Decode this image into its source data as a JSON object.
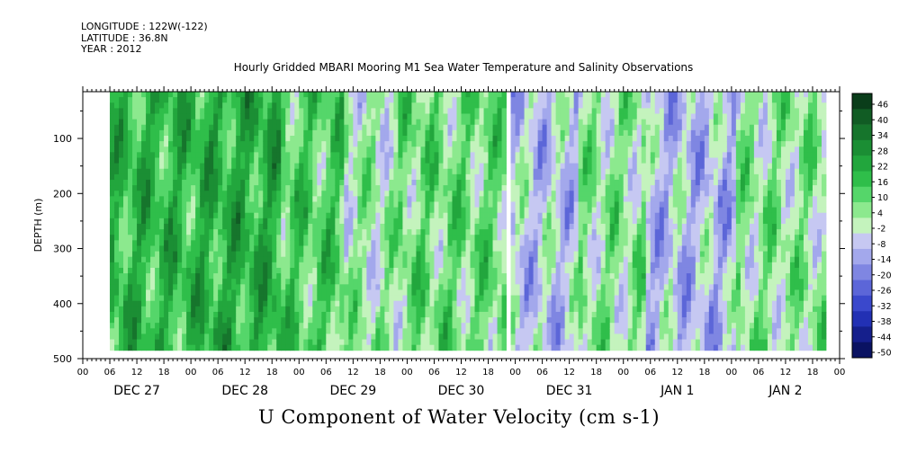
{
  "header": {
    "longitude": "LONGITUDE : 122W(-122)",
    "latitude": "LATITUDE : 36.8N",
    "year": "YEAR : 2012"
  },
  "chart_data": {
    "type": "heatmap",
    "title": "Hourly Gridded MBARI Mooring M1 Sea Water Temperature and Salinity Observations",
    "xlabel": "U Component of Water Velocity (cm s-1)",
    "ylabel": "DEPTH (m)",
    "ylim": [
      500,
      15
    ],
    "y_ticks": [
      100,
      200,
      300,
      400,
      500
    ],
    "x_range_hours": [
      0,
      168
    ],
    "x_hour_ticks": [
      "00",
      "06",
      "12",
      "18",
      "00",
      "06",
      "12",
      "18",
      "00",
      "06",
      "12",
      "18",
      "00",
      "06",
      "12",
      "18",
      "00",
      "06",
      "12",
      "18",
      "00",
      "06",
      "12",
      "18",
      "00",
      "06",
      "12",
      "18",
      "00"
    ],
    "day_labels": [
      "DEC 27",
      "DEC 28",
      "DEC 29",
      "DEC 30",
      "DEC 31",
      "JAN  1",
      "JAN  2"
    ],
    "data_extent_hours": [
      6,
      165
    ],
    "data_gaps": [
      {
        "hours": [
          94,
          95
        ],
        "depth": [
          15,
          485
        ]
      }
    ],
    "colorbar": {
      "labels": [
        "46",
        "40",
        "34",
        "28",
        "22",
        "16",
        "10",
        "4",
        "-2",
        "-8",
        "-14",
        "-20",
        "-26",
        "-32",
        "-38",
        "-44",
        "-50"
      ],
      "colors": [
        "#0a3d1a",
        "#115c24",
        "#16752c",
        "#1b8e34",
        "#22a63d",
        "#2fbe4a",
        "#55d66a",
        "#8ce98e",
        "#c4f3bd",
        "#c6c8f2",
        "#a3a8ec",
        "#7f86e2",
        "#5c66d8",
        "#3a48cc",
        "#2230b4",
        "#151f8c",
        "#0a1262"
      ]
    },
    "field_bands": [
      {
        "hours": [
          6,
          26
        ],
        "mean": 18
      },
      {
        "hours": [
          26,
          44
        ],
        "mean": 20
      },
      {
        "hours": [
          44,
          58
        ],
        "mean": 12
      },
      {
        "hours": [
          58,
          70
        ],
        "mean": 2
      },
      {
        "hours": [
          70,
          94
        ],
        "mean": 8
      },
      {
        "hours": [
          94,
          110
        ],
        "mean": -6
      },
      {
        "hours": [
          110,
          125
        ],
        "mean": 4
      },
      {
        "hours": [
          125,
          145
        ],
        "mean": -8
      },
      {
        "hours": [
          145,
          165
        ],
        "mean": 4
      }
    ]
  }
}
